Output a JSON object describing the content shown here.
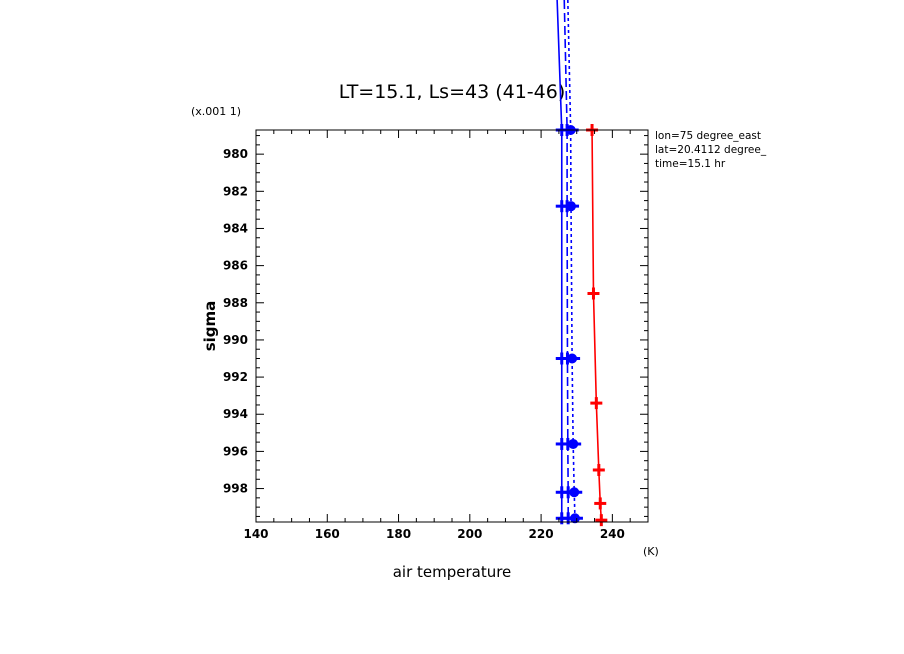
{
  "chart_data": {
    "type": "line",
    "title": "LT=15.1, Ls=43 (41-46)",
    "xlabel": "air temperature",
    "x_unit": "(K)",
    "ylabel": "sigma",
    "y_multiplier": "(x.001 1)",
    "xlim": [
      140,
      250
    ],
    "ylim": [
      999.8,
      978.7
    ],
    "x_ticks": [
      "140",
      "160",
      "180",
      "200",
      "220",
      "240"
    ],
    "y_ticks": [
      "980",
      "982",
      "984",
      "986",
      "988",
      "990",
      "992",
      "994",
      "996",
      "998"
    ],
    "info": [
      "lon=75 degree_east",
      "lat=20.4112 degree_",
      "time=15.1 hr"
    ],
    "series": [
      {
        "color": "#0000ff",
        "dash": "solid",
        "marker": "plus",
        "points": [
          [
            224.5,
            960
          ],
          [
            225.8,
            978.7
          ],
          [
            225.8,
            982.8
          ],
          [
            225.8,
            991.0
          ],
          [
            225.8,
            995.6
          ],
          [
            225.8,
            998.2
          ],
          [
            225.8,
            999.6
          ]
        ]
      },
      {
        "color": "#0000ff",
        "dash": "long",
        "marker": "plus",
        "points": [
          [
            226.5,
            960
          ],
          [
            227.3,
            978.7
          ],
          [
            227.3,
            982.8
          ],
          [
            227.4,
            991.0
          ],
          [
            227.5,
            995.6
          ],
          [
            227.6,
            998.2
          ],
          [
            227.6,
            999.6
          ]
        ]
      },
      {
        "color": "#0000ff",
        "dash": "short",
        "marker": "dot",
        "points": [
          [
            227.5,
            960
          ],
          [
            228.3,
            978.7
          ],
          [
            228.4,
            982.8
          ],
          [
            228.7,
            991.0
          ],
          [
            229.0,
            995.6
          ],
          [
            229.3,
            998.2
          ],
          [
            229.5,
            999.6
          ]
        ]
      },
      {
        "color": "#ff0000",
        "dash": "solid",
        "marker": "plus",
        "points": [
          [
            234.3,
            978.7
          ],
          [
            234.7,
            987.5
          ],
          [
            235.5,
            993.4
          ],
          [
            236.2,
            997.0
          ],
          [
            236.6,
            998.8
          ],
          [
            236.9,
            999.7
          ]
        ]
      }
    ]
  }
}
